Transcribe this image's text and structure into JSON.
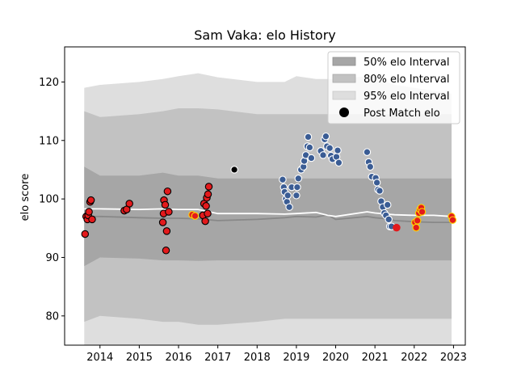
{
  "chart_data": {
    "type": "scatter",
    "title": "Sam Vaka: elo History",
    "xlabel": "",
    "ylabel": "elo score",
    "xlim": [
      2013.1,
      2023.3
    ],
    "ylim": [
      75,
      126
    ],
    "x_ticks": [
      {
        "v": 2014,
        "label": "2014"
      },
      {
        "v": 2015,
        "label": "2015"
      },
      {
        "v": 2016,
        "label": "2016"
      },
      {
        "v": 2017,
        "label": "2017"
      },
      {
        "v": 2018,
        "label": "2018"
      },
      {
        "v": 2019,
        "label": "2019"
      },
      {
        "v": 2020,
        "label": "2020"
      },
      {
        "v": 2021,
        "label": "2021"
      },
      {
        "v": 2022,
        "label": "2022"
      },
      {
        "v": 2023,
        "label": "2023"
      }
    ],
    "y_ticks": [
      {
        "v": 80,
        "label": "80"
      },
      {
        "v": 90,
        "label": "90"
      },
      {
        "v": 100,
        "label": "100"
      },
      {
        "v": 110,
        "label": "110"
      },
      {
        "v": 120,
        "label": "120"
      }
    ],
    "legend": {
      "placement": "top-right",
      "entries": [
        {
          "label": "50% elo Interval",
          "color": "#a6a6a6"
        },
        {
          "label": "80% elo Interval",
          "color": "#c2c2c2"
        },
        {
          "label": "95% elo Interval",
          "color": "#dedede"
        },
        {
          "label": "Post Match elo",
          "color": "#000000"
        }
      ]
    },
    "bands": {
      "x": [
        2013.6,
        2014.0,
        2015.0,
        2015.6,
        2016.0,
        2016.5,
        2017.0,
        2018.0,
        2018.7,
        2019.0,
        2019.5,
        2019.8,
        2020.0,
        2020.8,
        2021.0,
        2021.3,
        2021.5,
        2022.0,
        2022.5,
        2022.95
      ],
      "center": [
        97.0,
        97.0,
        96.8,
        96.7,
        96.7,
        96.6,
        96.3,
        96.5,
        96.8,
        97.0,
        96.9,
        97.3,
        96.5,
        97.0,
        96.8,
        96.6,
        96.3,
        96.1,
        96.0,
        96.0
      ],
      "p50_upper": [
        105.5,
        104.0,
        104.0,
        104.5,
        104.0,
        104.0,
        103.5,
        103.5,
        103.5,
        103.5,
        103.5,
        103.5,
        103.5,
        103.5,
        103.5,
        103.5,
        103.5,
        103.5,
        103.5,
        103.5
      ],
      "p50_lower": [
        88.5,
        90.0,
        89.8,
        89.5,
        89.5,
        89.4,
        89.5,
        89.5,
        89.5,
        89.5,
        89.5,
        89.5,
        89.5,
        89.5,
        89.5,
        89.5,
        89.5,
        89.5,
        89.5,
        89.5
      ],
      "p80_upper": [
        115.0,
        114.0,
        114.5,
        115.0,
        115.5,
        115.5,
        115.3,
        114.5,
        114.5,
        114.5,
        114.5,
        114.5,
        114.5,
        114.5,
        114.5,
        114.5,
        114.5,
        114.5,
        114.5,
        114.5
      ],
      "p80_lower": [
        79.0,
        80.0,
        79.5,
        79.0,
        79.0,
        78.5,
        78.5,
        79.0,
        79.5,
        79.5,
        79.5,
        79.5,
        79.5,
        79.5,
        79.5,
        79.5,
        79.5,
        79.5,
        79.5,
        79.5
      ],
      "p95_upper": [
        119.0,
        119.5,
        120.0,
        120.5,
        121.0,
        121.5,
        120.8,
        120.0,
        120.0,
        121.0,
        120.5,
        120.5,
        120.5,
        121.0,
        121.0,
        120.0,
        119.5,
        119.0,
        118.5,
        118.0
      ],
      "p95_lower": [
        74.0,
        75.0,
        74.5,
        74.0,
        73.5,
        73.0,
        73.0,
        73.0,
        73.5,
        73.5,
        73.5,
        73.5,
        73.5,
        73.5,
        73.5,
        73.5,
        73.5,
        73.5,
        73.5,
        73.5
      ],
      "center_line_color": "#888888",
      "mean_line": {
        "x": [
          2013.6,
          2014.0,
          2015.0,
          2015.6,
          2016.0,
          2016.5,
          2017.0,
          2018.0,
          2018.7,
          2019.0,
          2019.5,
          2019.8,
          2020.0,
          2020.8,
          2021.0,
          2021.3,
          2021.5,
          2022.0,
          2022.5,
          2022.95
        ],
        "y": [
          98.3,
          98.3,
          98.2,
          98.3,
          98.2,
          98.2,
          97.5,
          97.5,
          97.4,
          97.5,
          97.7,
          97.2,
          97.0,
          97.8,
          97.6,
          97.4,
          97.3,
          97.2,
          97.2,
          97.0
        ],
        "color": "#ffffff"
      }
    },
    "series": [
      {
        "name": "",
        "face_color": "#e31a1c",
        "edge_color": "#000000",
        "points": [
          [
            2013.62,
            94.0
          ],
          [
            2013.65,
            97.0
          ],
          [
            2013.68,
            96.5
          ],
          [
            2013.7,
            97.2
          ],
          [
            2013.72,
            97.8
          ],
          [
            2013.75,
            99.5
          ],
          [
            2013.77,
            99.8
          ],
          [
            2013.8,
            96.5
          ],
          [
            2014.62,
            98.0
          ],
          [
            2014.68,
            98.2
          ],
          [
            2014.75,
            99.2
          ],
          [
            2015.6,
            96.0
          ],
          [
            2015.62,
            97.5
          ],
          [
            2015.63,
            99.8
          ],
          [
            2015.66,
            99.0
          ],
          [
            2015.68,
            91.2
          ],
          [
            2015.7,
            94.5
          ],
          [
            2015.72,
            101.3
          ],
          [
            2015.75,
            97.8
          ],
          [
            2016.62,
            97.2
          ],
          [
            2016.65,
            99.2
          ],
          [
            2016.68,
            96.2
          ],
          [
            2016.7,
            98.8
          ],
          [
            2016.72,
            100.2
          ],
          [
            2016.75,
            100.8
          ],
          [
            2016.77,
            102.1
          ],
          [
            2016.74,
            97.5
          ]
        ]
      },
      {
        "name": "",
        "face_color": "#000000",
        "edge_color": "#ffffff",
        "points": [
          [
            2017.42,
            105.0
          ]
        ]
      },
      {
        "name": "",
        "face_color": "#3a5c94",
        "edge_color": "#ffffff",
        "points": [
          [
            2018.65,
            103.3
          ],
          [
            2018.68,
            102.0
          ],
          [
            2018.7,
            101.2
          ],
          [
            2018.73,
            100.0
          ],
          [
            2018.76,
            99.5
          ],
          [
            2018.78,
            100.6
          ],
          [
            2018.82,
            98.6
          ],
          [
            2018.88,
            102.0
          ],
          [
            2019.0,
            100.6
          ],
          [
            2019.02,
            102.0
          ],
          [
            2019.05,
            103.5
          ],
          [
            2019.12,
            105.0
          ],
          [
            2019.18,
            105.5
          ],
          [
            2019.2,
            106.5
          ],
          [
            2019.24,
            107.5
          ],
          [
            2019.28,
            109.0
          ],
          [
            2019.3,
            110.6
          ],
          [
            2019.34,
            108.8
          ],
          [
            2019.38,
            107.0
          ],
          [
            2019.62,
            108.2
          ],
          [
            2019.68,
            107.5
          ],
          [
            2019.72,
            110.2
          ],
          [
            2019.75,
            110.7
          ],
          [
            2019.78,
            109.0
          ],
          [
            2019.85,
            108.7
          ],
          [
            2019.88,
            107.4
          ],
          [
            2019.92,
            106.8
          ],
          [
            2020.02,
            107.2
          ],
          [
            2020.05,
            108.3
          ],
          [
            2020.08,
            106.2
          ],
          [
            2020.8,
            108.0
          ],
          [
            2020.84,
            106.3
          ],
          [
            2020.88,
            105.5
          ],
          [
            2020.92,
            103.8
          ],
          [
            2021.02,
            103.6
          ],
          [
            2021.05,
            102.8
          ],
          [
            2021.08,
            101.6
          ],
          [
            2021.12,
            101.4
          ],
          [
            2021.16,
            99.6
          ],
          [
            2021.2,
            98.6
          ],
          [
            2021.24,
            97.6
          ],
          [
            2021.28,
            97.2
          ],
          [
            2021.32,
            99.0
          ],
          [
            2021.35,
            96.5
          ],
          [
            2021.38,
            95.3
          ],
          [
            2021.42,
            95.3
          ]
        ]
      },
      {
        "name": "",
        "face_color": "#e31a1c",
        "edge_color": "#ffd400",
        "points": [
          [
            2016.35,
            97.3
          ],
          [
            2016.42,
            97.1
          ],
          [
            2022.02,
            96.0
          ],
          [
            2022.05,
            95.1
          ],
          [
            2022.08,
            96.3
          ],
          [
            2022.12,
            97.6
          ],
          [
            2022.15,
            98.2
          ],
          [
            2022.18,
            98.5
          ],
          [
            2022.2,
            97.8
          ],
          [
            2022.95,
            97.0
          ],
          [
            2022.98,
            96.4
          ]
        ]
      },
      {
        "name": "",
        "face_color": "#e31a1c",
        "edge_color": "#e31a1c",
        "points": [
          [
            2021.55,
            95.1
          ]
        ]
      }
    ]
  }
}
